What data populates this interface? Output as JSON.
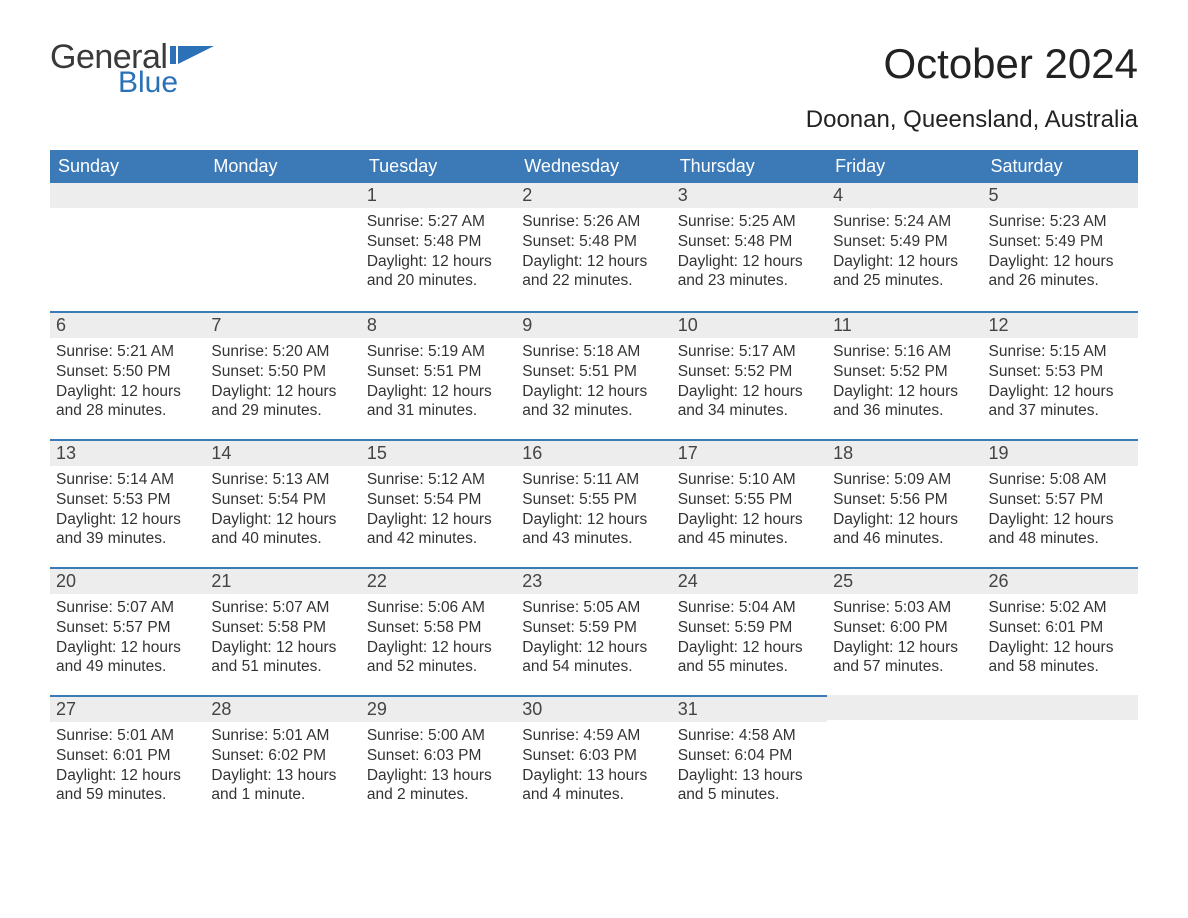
{
  "logo": {
    "word1": "General",
    "word2": "Blue",
    "flag_color": "#2a71b8",
    "text1_color": "#3a3a3a",
    "text2_color": "#2a71b8"
  },
  "title": "October 2024",
  "location": "Doonan, Queensland, Australia",
  "colors": {
    "header_bg": "#3b79b7",
    "header_text": "#ffffff",
    "daynum_bg": "#ededed",
    "row_divider": "#3b79b7",
    "body_text": "#333333",
    "page_bg": "#ffffff"
  },
  "weekdays": [
    "Sunday",
    "Monday",
    "Tuesday",
    "Wednesday",
    "Thursday",
    "Friday",
    "Saturday"
  ],
  "label_sunrise": "Sunrise: ",
  "label_sunset": "Sunset: ",
  "label_daylight": "Daylight: ",
  "weeks": [
    [
      null,
      null,
      {
        "n": "1",
        "sunrise": "5:27 AM",
        "sunset": "5:48 PM",
        "daylight": "12 hours and 20 minutes."
      },
      {
        "n": "2",
        "sunrise": "5:26 AM",
        "sunset": "5:48 PM",
        "daylight": "12 hours and 22 minutes."
      },
      {
        "n": "3",
        "sunrise": "5:25 AM",
        "sunset": "5:48 PM",
        "daylight": "12 hours and 23 minutes."
      },
      {
        "n": "4",
        "sunrise": "5:24 AM",
        "sunset": "5:49 PM",
        "daylight": "12 hours and 25 minutes."
      },
      {
        "n": "5",
        "sunrise": "5:23 AM",
        "sunset": "5:49 PM",
        "daylight": "12 hours and 26 minutes."
      }
    ],
    [
      {
        "n": "6",
        "sunrise": "5:21 AM",
        "sunset": "5:50 PM",
        "daylight": "12 hours and 28 minutes."
      },
      {
        "n": "7",
        "sunrise": "5:20 AM",
        "sunset": "5:50 PM",
        "daylight": "12 hours and 29 minutes."
      },
      {
        "n": "8",
        "sunrise": "5:19 AM",
        "sunset": "5:51 PM",
        "daylight": "12 hours and 31 minutes."
      },
      {
        "n": "9",
        "sunrise": "5:18 AM",
        "sunset": "5:51 PM",
        "daylight": "12 hours and 32 minutes."
      },
      {
        "n": "10",
        "sunrise": "5:17 AM",
        "sunset": "5:52 PM",
        "daylight": "12 hours and 34 minutes."
      },
      {
        "n": "11",
        "sunrise": "5:16 AM",
        "sunset": "5:52 PM",
        "daylight": "12 hours and 36 minutes."
      },
      {
        "n": "12",
        "sunrise": "5:15 AM",
        "sunset": "5:53 PM",
        "daylight": "12 hours and 37 minutes."
      }
    ],
    [
      {
        "n": "13",
        "sunrise": "5:14 AM",
        "sunset": "5:53 PM",
        "daylight": "12 hours and 39 minutes."
      },
      {
        "n": "14",
        "sunrise": "5:13 AM",
        "sunset": "5:54 PM",
        "daylight": "12 hours and 40 minutes."
      },
      {
        "n": "15",
        "sunrise": "5:12 AM",
        "sunset": "5:54 PM",
        "daylight": "12 hours and 42 minutes."
      },
      {
        "n": "16",
        "sunrise": "5:11 AM",
        "sunset": "5:55 PM",
        "daylight": "12 hours and 43 minutes."
      },
      {
        "n": "17",
        "sunrise": "5:10 AM",
        "sunset": "5:55 PM",
        "daylight": "12 hours and 45 minutes."
      },
      {
        "n": "18",
        "sunrise": "5:09 AM",
        "sunset": "5:56 PM",
        "daylight": "12 hours and 46 minutes."
      },
      {
        "n": "19",
        "sunrise": "5:08 AM",
        "sunset": "5:57 PM",
        "daylight": "12 hours and 48 minutes."
      }
    ],
    [
      {
        "n": "20",
        "sunrise": "5:07 AM",
        "sunset": "5:57 PM",
        "daylight": "12 hours and 49 minutes."
      },
      {
        "n": "21",
        "sunrise": "5:07 AM",
        "sunset": "5:58 PM",
        "daylight": "12 hours and 51 minutes."
      },
      {
        "n": "22",
        "sunrise": "5:06 AM",
        "sunset": "5:58 PM",
        "daylight": "12 hours and 52 minutes."
      },
      {
        "n": "23",
        "sunrise": "5:05 AM",
        "sunset": "5:59 PM",
        "daylight": "12 hours and 54 minutes."
      },
      {
        "n": "24",
        "sunrise": "5:04 AM",
        "sunset": "5:59 PM",
        "daylight": "12 hours and 55 minutes."
      },
      {
        "n": "25",
        "sunrise": "5:03 AM",
        "sunset": "6:00 PM",
        "daylight": "12 hours and 57 minutes."
      },
      {
        "n": "26",
        "sunrise": "5:02 AM",
        "sunset": "6:01 PM",
        "daylight": "12 hours and 58 minutes."
      }
    ],
    [
      {
        "n": "27",
        "sunrise": "5:01 AM",
        "sunset": "6:01 PM",
        "daylight": "12 hours and 59 minutes."
      },
      {
        "n": "28",
        "sunrise": "5:01 AM",
        "sunset": "6:02 PM",
        "daylight": "13 hours and 1 minute."
      },
      {
        "n": "29",
        "sunrise": "5:00 AM",
        "sunset": "6:03 PM",
        "daylight": "13 hours and 2 minutes."
      },
      {
        "n": "30",
        "sunrise": "4:59 AM",
        "sunset": "6:03 PM",
        "daylight": "13 hours and 4 minutes."
      },
      {
        "n": "31",
        "sunrise": "4:58 AM",
        "sunset": "6:04 PM",
        "daylight": "13 hours and 5 minutes."
      },
      null,
      null
    ]
  ]
}
